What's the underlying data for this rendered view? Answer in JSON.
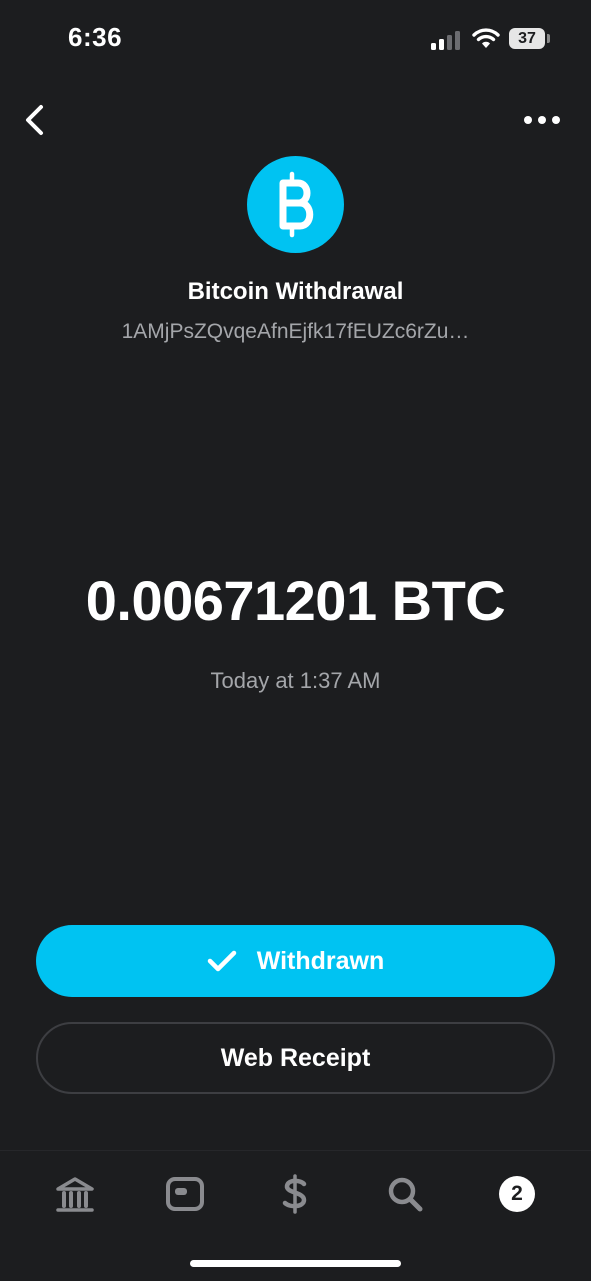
{
  "status_bar": {
    "time": "6:36",
    "battery": "37",
    "icons": [
      "signal-icon",
      "wifi-icon",
      "battery-icon"
    ]
  },
  "header": {
    "icons": [
      "back-chevron-icon",
      "more-dots-icon"
    ]
  },
  "transaction": {
    "icon": "bitcoin-icon",
    "title": "Bitcoin Withdrawal",
    "address": "1AMjPsZQvqeAfnEjfk17fEUZc6rZu…",
    "amount": "0.00671201 BTC",
    "timestamp": "Today at 1:37 AM"
  },
  "actions": {
    "status_label": "Withdrawn",
    "status_icon": "checkmark-icon",
    "receipt_label": "Web Receipt"
  },
  "tab_bar": {
    "tabs": [
      {
        "icon": "bank-icon"
      },
      {
        "icon": "card-icon"
      },
      {
        "icon": "dollar-icon"
      },
      {
        "icon": "search-icon"
      },
      {
        "icon": "activity-badge",
        "badge": "2"
      }
    ]
  },
  "colors": {
    "background": "#1c1d1f",
    "accent": "#00c3f2",
    "secondary_text": "#a4a6aa",
    "inactive_icon": "#8a8b8f"
  }
}
